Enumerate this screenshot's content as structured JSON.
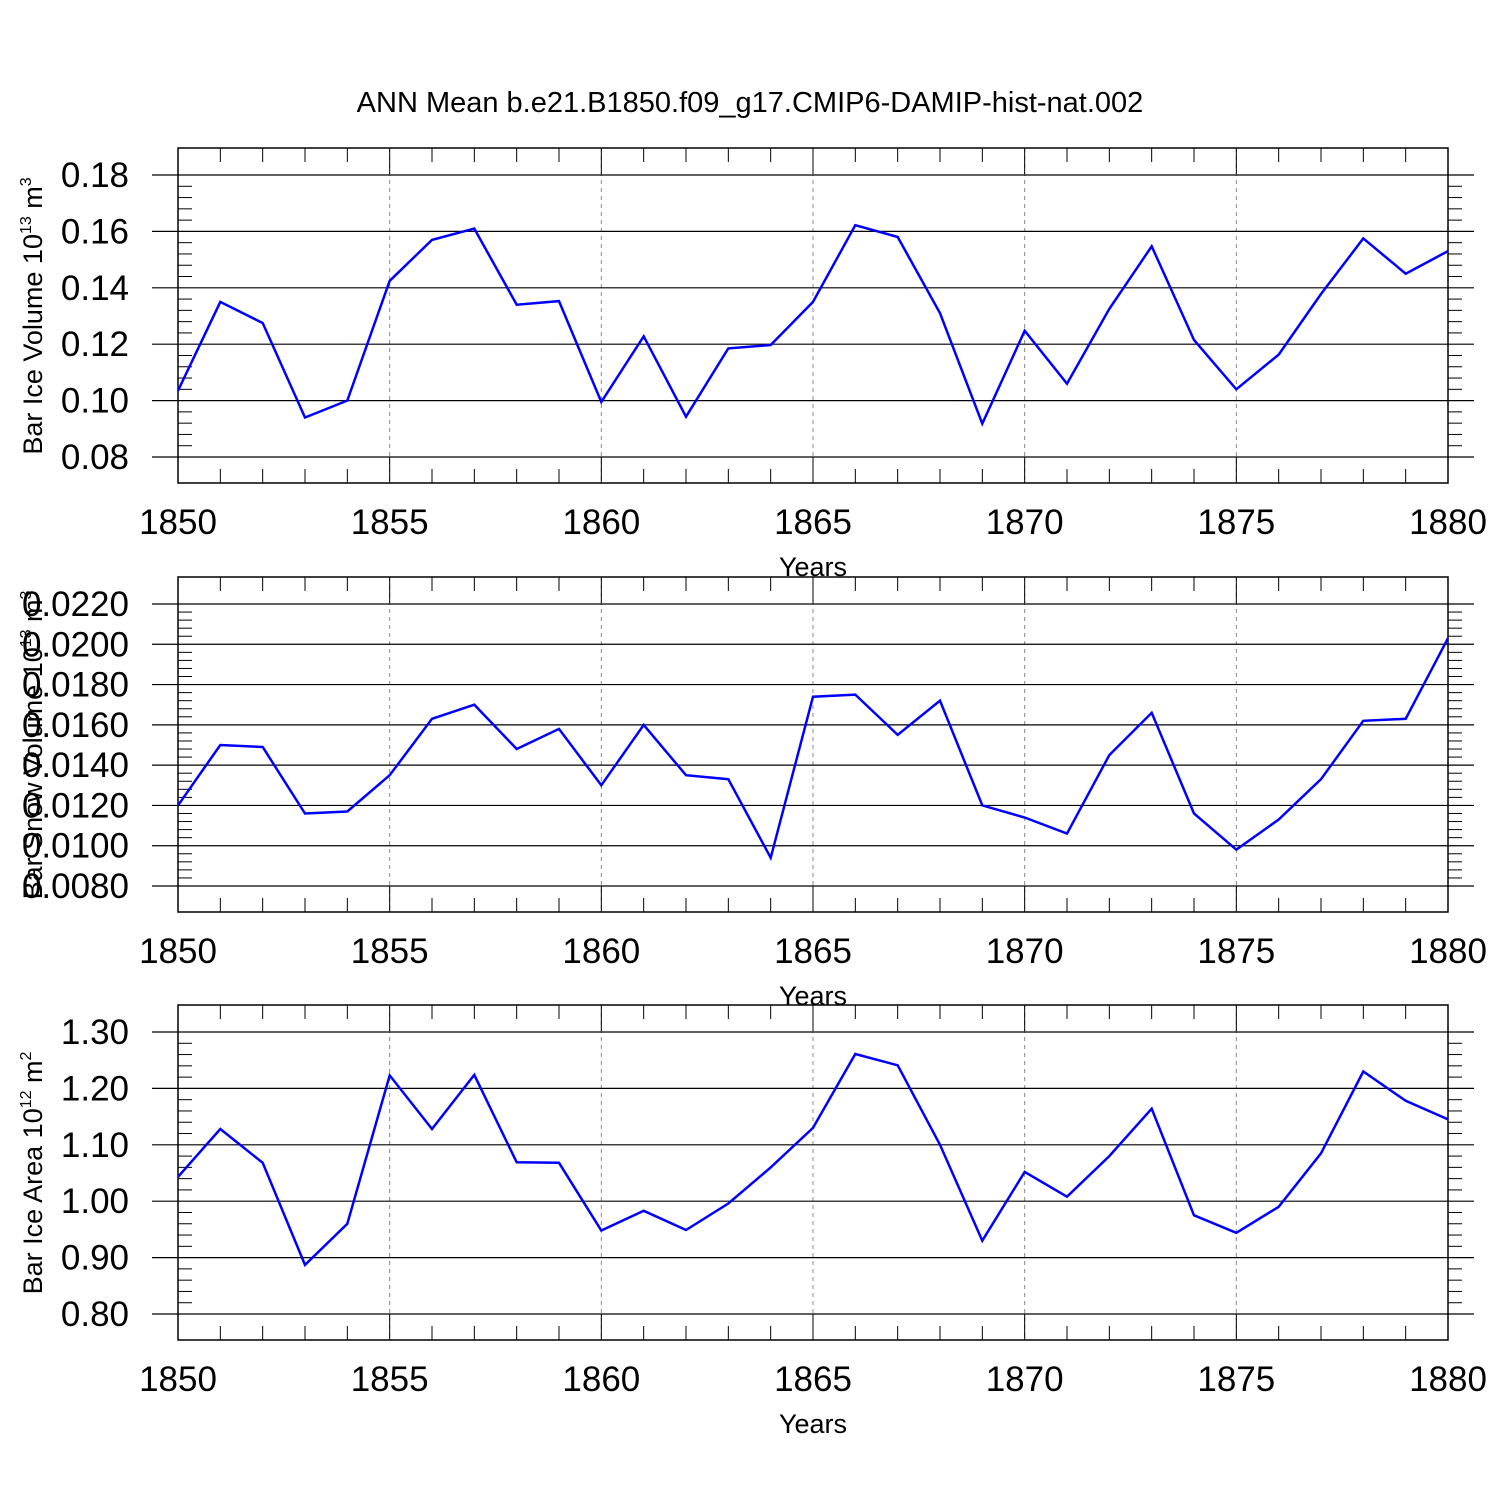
{
  "figure": {
    "title": "ANN Mean b.e21.B1850.f09_g17.CMIP6-DAMIP-hist-nat.002",
    "line_color": "#0000ff"
  },
  "chart_data": [
    {
      "type": "line",
      "title": "ANN Mean b.e21.B1850.f09_g17.CMIP6-DAMIP-hist-nat.002",
      "xlabel": "Years",
      "ylabel": {
        "prefix": "Bar Ice Volume 10",
        "exp": "13",
        "unit": " m",
        "unit_exp": "3"
      },
      "x": [
        1850,
        1851,
        1852,
        1853,
        1854,
        1855,
        1856,
        1857,
        1858,
        1859,
        1860,
        1861,
        1862,
        1863,
        1864,
        1865,
        1866,
        1867,
        1868,
        1869,
        1870,
        1871,
        1872,
        1873,
        1874,
        1875,
        1876,
        1877,
        1878,
        1879,
        1880
      ],
      "values": [
        0.1035,
        0.135,
        0.1275,
        0.094,
        0.1,
        0.1425,
        0.157,
        0.161,
        0.134,
        0.1353,
        0.0995,
        0.1228,
        0.0943,
        0.1185,
        0.1197,
        0.135,
        0.1622,
        0.158,
        0.131,
        0.0918,
        0.1248,
        0.106,
        0.1325,
        0.1547,
        0.1215,
        0.104,
        0.1163,
        0.1378,
        0.1575,
        0.145,
        0.153
      ],
      "xlim": [
        1850,
        1880
      ],
      "ylim": [
        0.08,
        0.18
      ],
      "xticks": [
        "1850",
        "1855",
        "1860",
        "1865",
        "1870",
        "1875",
        "1880"
      ],
      "yticks": [
        "0.08",
        "0.10",
        "0.12",
        "0.14",
        "0.16",
        "0.18"
      ],
      "grid": "vertical dashed"
    },
    {
      "type": "line",
      "xlabel": "Years",
      "ylabel": {
        "prefix": "Bar Snow Volume 10",
        "exp": "13",
        "unit": " m",
        "unit_exp": "3"
      },
      "x": [
        1850,
        1851,
        1852,
        1853,
        1854,
        1855,
        1856,
        1857,
        1858,
        1859,
        1860,
        1861,
        1862,
        1863,
        1864,
        1865,
        1866,
        1867,
        1868,
        1869,
        1870,
        1871,
        1872,
        1873,
        1874,
        1875,
        1876,
        1877,
        1878,
        1879,
        1880
      ],
      "values": [
        0.012,
        0.015,
        0.0149,
        0.0116,
        0.0117,
        0.0135,
        0.0163,
        0.017,
        0.0148,
        0.0158,
        0.013,
        0.016,
        0.0135,
        0.0133,
        0.0094,
        0.0174,
        0.0175,
        0.0155,
        0.0172,
        0.012,
        0.0114,
        0.0106,
        0.0145,
        0.0166,
        0.0116,
        0.0098,
        0.0113,
        0.0133,
        0.0162,
        0.0163,
        0.0203
      ],
      "xlim": [
        1850,
        1880
      ],
      "ylim": [
        0.008,
        0.022
      ],
      "xticks": [
        "1850",
        "1855",
        "1860",
        "1865",
        "1870",
        "1875",
        "1880"
      ],
      "yticks": [
        "0.0080",
        "0.0100",
        "0.0120",
        "0.0140",
        "0.0160",
        "0.0180",
        "0.0200",
        "0.0220"
      ],
      "grid": "vertical dashed"
    },
    {
      "type": "line",
      "xlabel": "Years",
      "ylabel": {
        "prefix": "Bar Ice Area 10",
        "exp": "12",
        "unit": " m",
        "unit_exp": "2"
      },
      "x": [
        1850,
        1851,
        1852,
        1853,
        1854,
        1855,
        1856,
        1857,
        1858,
        1859,
        1860,
        1861,
        1862,
        1863,
        1864,
        1865,
        1866,
        1867,
        1868,
        1869,
        1870,
        1871,
        1872,
        1873,
        1874,
        1875,
        1876,
        1877,
        1878,
        1879,
        1880
      ],
      "values": [
        1.043,
        1.128,
        1.068,
        0.887,
        0.96,
        1.223,
        1.128,
        1.224,
        1.069,
        1.068,
        0.948,
        0.983,
        0.949,
        0.996,
        1.06,
        1.13,
        1.261,
        1.241,
        1.1,
        0.93,
        1.052,
        1.008,
        1.08,
        1.164,
        0.975,
        0.944,
        0.99,
        1.085,
        1.23,
        1.178,
        1.145
      ],
      "xlim": [
        1850,
        1880
      ],
      "ylim": [
        0.8,
        1.3
      ],
      "xticks": [
        "1850",
        "1855",
        "1860",
        "1865",
        "1870",
        "1875",
        "1880"
      ],
      "yticks": [
        "0.80",
        "0.90",
        "1.00",
        "1.10",
        "1.20",
        "1.30"
      ],
      "grid": "vertical dashed"
    }
  ]
}
